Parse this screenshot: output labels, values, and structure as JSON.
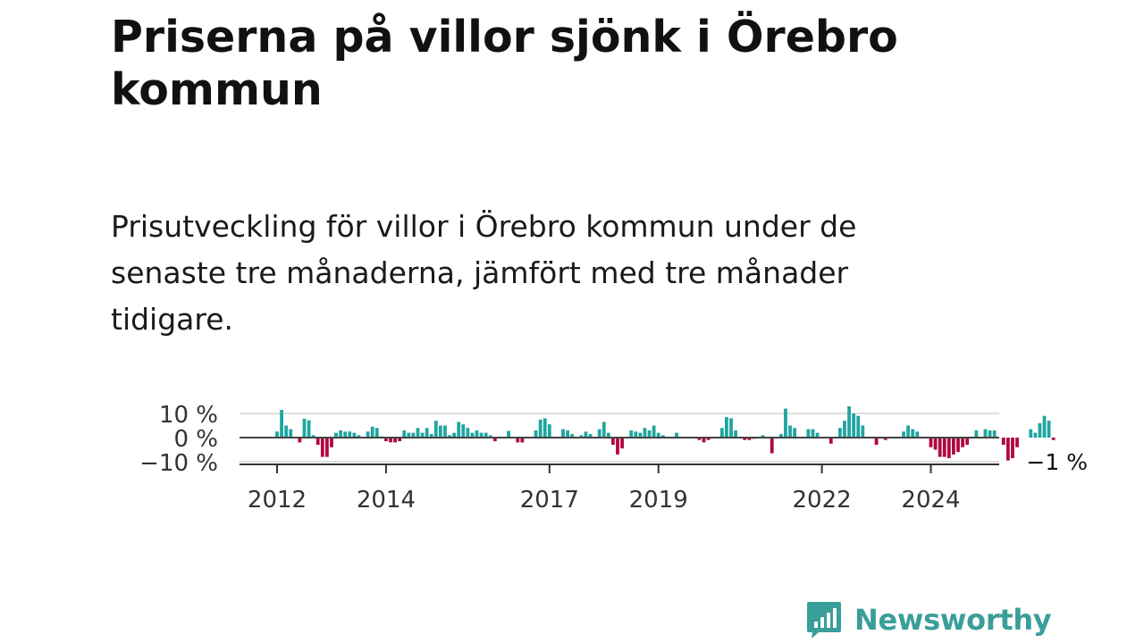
{
  "title": "Priserna på villor sjönk i Örebro kommun",
  "subtitle": "Prisutveckling för villor i Örebro kommun under de senaste tre månaderna, jämfört med tre månader tidigare.",
  "brand": {
    "name": "Newsworthy",
    "color": "#3a9e9a"
  },
  "chart_data": {
    "type": "bar",
    "title": "Priserna på villor sjönk i Örebro kommun",
    "subtitle": "Prisutveckling för villor i Örebro kommun under de senaste tre månaderna, jämfört med tre månader tidigare.",
    "xlabel": "",
    "ylabel": "",
    "unit": "%",
    "x_start": "2012-01",
    "frequency": "monthly",
    "ylim": [
      -12,
      13
    ],
    "y_ticks": [
      {
        "value": 10,
        "label": "10 %"
      },
      {
        "value": 0,
        "label": "0 %"
      },
      {
        "value": -10,
        "label": "−10 %"
      }
    ],
    "x_ticks": [
      {
        "year": 2012,
        "label": "2012"
      },
      {
        "year": 2014,
        "label": "2014"
      },
      {
        "year": 2017,
        "label": "2017"
      },
      {
        "year": 2019,
        "label": "2019"
      },
      {
        "year": 2022,
        "label": "2022"
      },
      {
        "year": 2024,
        "label": "2024"
      }
    ],
    "positive_color": "#1fa6a0",
    "negative_color": "#b0093f",
    "grid": true,
    "last_value_label": "−1 %",
    "values": [
      2.5,
      11.5,
      5,
      3.5,
      0,
      -2,
      7.8,
      7.2,
      1,
      -3,
      -8,
      -8,
      -4,
      2,
      3,
      2.5,
      2.5,
      2,
      1,
      0,
      2.5,
      4.5,
      4,
      0.5,
      -1.5,
      -2,
      -2,
      -1.5,
      3,
      2,
      2,
      4,
      2,
      4,
      1.5,
      7,
      5,
      5,
      1,
      2,
      6.5,
      5.5,
      4,
      2,
      3,
      2,
      2,
      1,
      -1.5,
      0,
      0,
      2.8,
      0,
      -2,
      -2,
      0,
      0,
      3,
      7.5,
      8,
      5.5,
      0,
      0,
      3.5,
      3,
      1.5,
      0,
      1,
      2.5,
      1.5,
      0,
      3.5,
      6.5,
      2,
      -3,
      -7,
      -4.5,
      0,
      3,
      2.5,
      2,
      4,
      3,
      5,
      2,
      1,
      0,
      0,
      2,
      0,
      0,
      0,
      0,
      -1,
      -2,
      -1,
      0,
      0,
      4,
      8.5,
      8,
      3,
      0,
      -1,
      -1,
      -0.5,
      0,
      1,
      0,
      -6.5,
      0,
      1.5,
      12,
      5,
      4,
      0,
      0,
      3.5,
      3.5,
      2,
      0,
      0,
      -2.5,
      0,
      4,
      7,
      13,
      10,
      9,
      5,
      0,
      0,
      -3,
      0,
      -1,
      0,
      0,
      0,
      2.5,
      5,
      3.5,
      2.5,
      0,
      0,
      -4,
      -5,
      -8,
      -8,
      -8.5,
      -7,
      -6,
      -4,
      -3,
      0,
      3,
      0,
      3.5,
      3,
      3,
      0,
      -3,
      -9.5,
      -8.5,
      -4,
      0,
      0,
      3.5,
      2,
      6,
      9,
      7,
      -1
    ]
  }
}
